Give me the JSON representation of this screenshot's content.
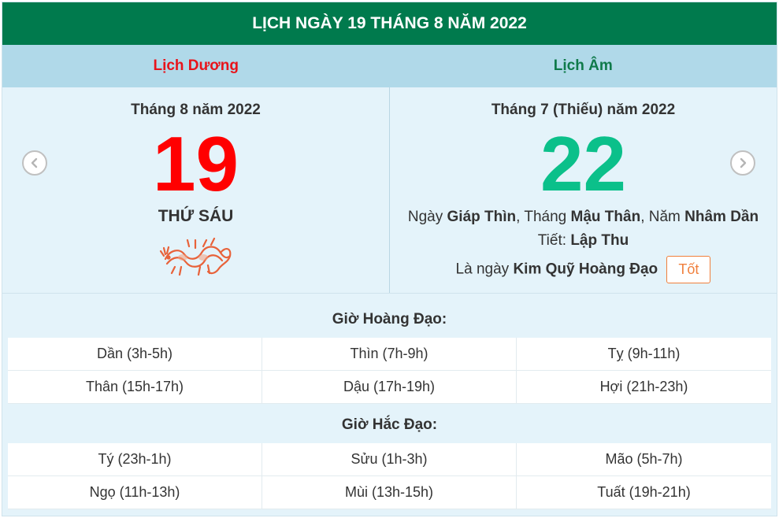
{
  "header": {
    "title": "LỊCH NGÀY 19 THÁNG 8 NĂM 2022"
  },
  "tabs": {
    "solar": "Lịch Dương",
    "lunar": "Lịch Âm"
  },
  "solar": {
    "month_line": "Tháng 8 năm 2022",
    "day": "19",
    "weekday": "THỨ SÁU",
    "zodiac_icon": "dragon-icon"
  },
  "lunar": {
    "month_line": "Tháng 7 (Thiếu) năm 2022",
    "day": "22",
    "ngay_prefix": "Ngày ",
    "ngay_value": "Giáp Thìn",
    "thang_prefix": ", Tháng ",
    "thang_value": "Mậu Thân",
    "nam_prefix": ", Năm ",
    "nam_value": "Nhâm Dần",
    "tiet_prefix": "Tiết: ",
    "tiet_value": "Lập Thu",
    "la_ngay_prefix": "Là ngày ",
    "la_ngay_value": "Kim Quỹ Hoàng Đạo",
    "badge": "Tốt"
  },
  "nav": {
    "prev_icon": "chevron-left-icon",
    "next_icon": "chevron-right-icon"
  },
  "good_hours": {
    "title": "Giờ Hoàng Đạo:",
    "items": [
      "Dần (3h-5h)",
      "Thìn (7h-9h)",
      "Tỵ (9h-11h)",
      "Thân (15h-17h)",
      "Dậu (17h-19h)",
      "Hợi (21h-23h)"
    ]
  },
  "bad_hours": {
    "title": "Giờ Hắc Đạo:",
    "items": [
      "Tý (23h-1h)",
      "Sửu (1h-3h)",
      "Mão (5h-7h)",
      "Ngọ (11h-13h)",
      "Mùi (13h-15h)",
      "Tuất (19h-21h)"
    ]
  },
  "colors": {
    "header_bg": "#007a4d",
    "solar_day": "#ff0000",
    "lunar_day": "#0bc08a",
    "badge": "#f07f3c"
  }
}
